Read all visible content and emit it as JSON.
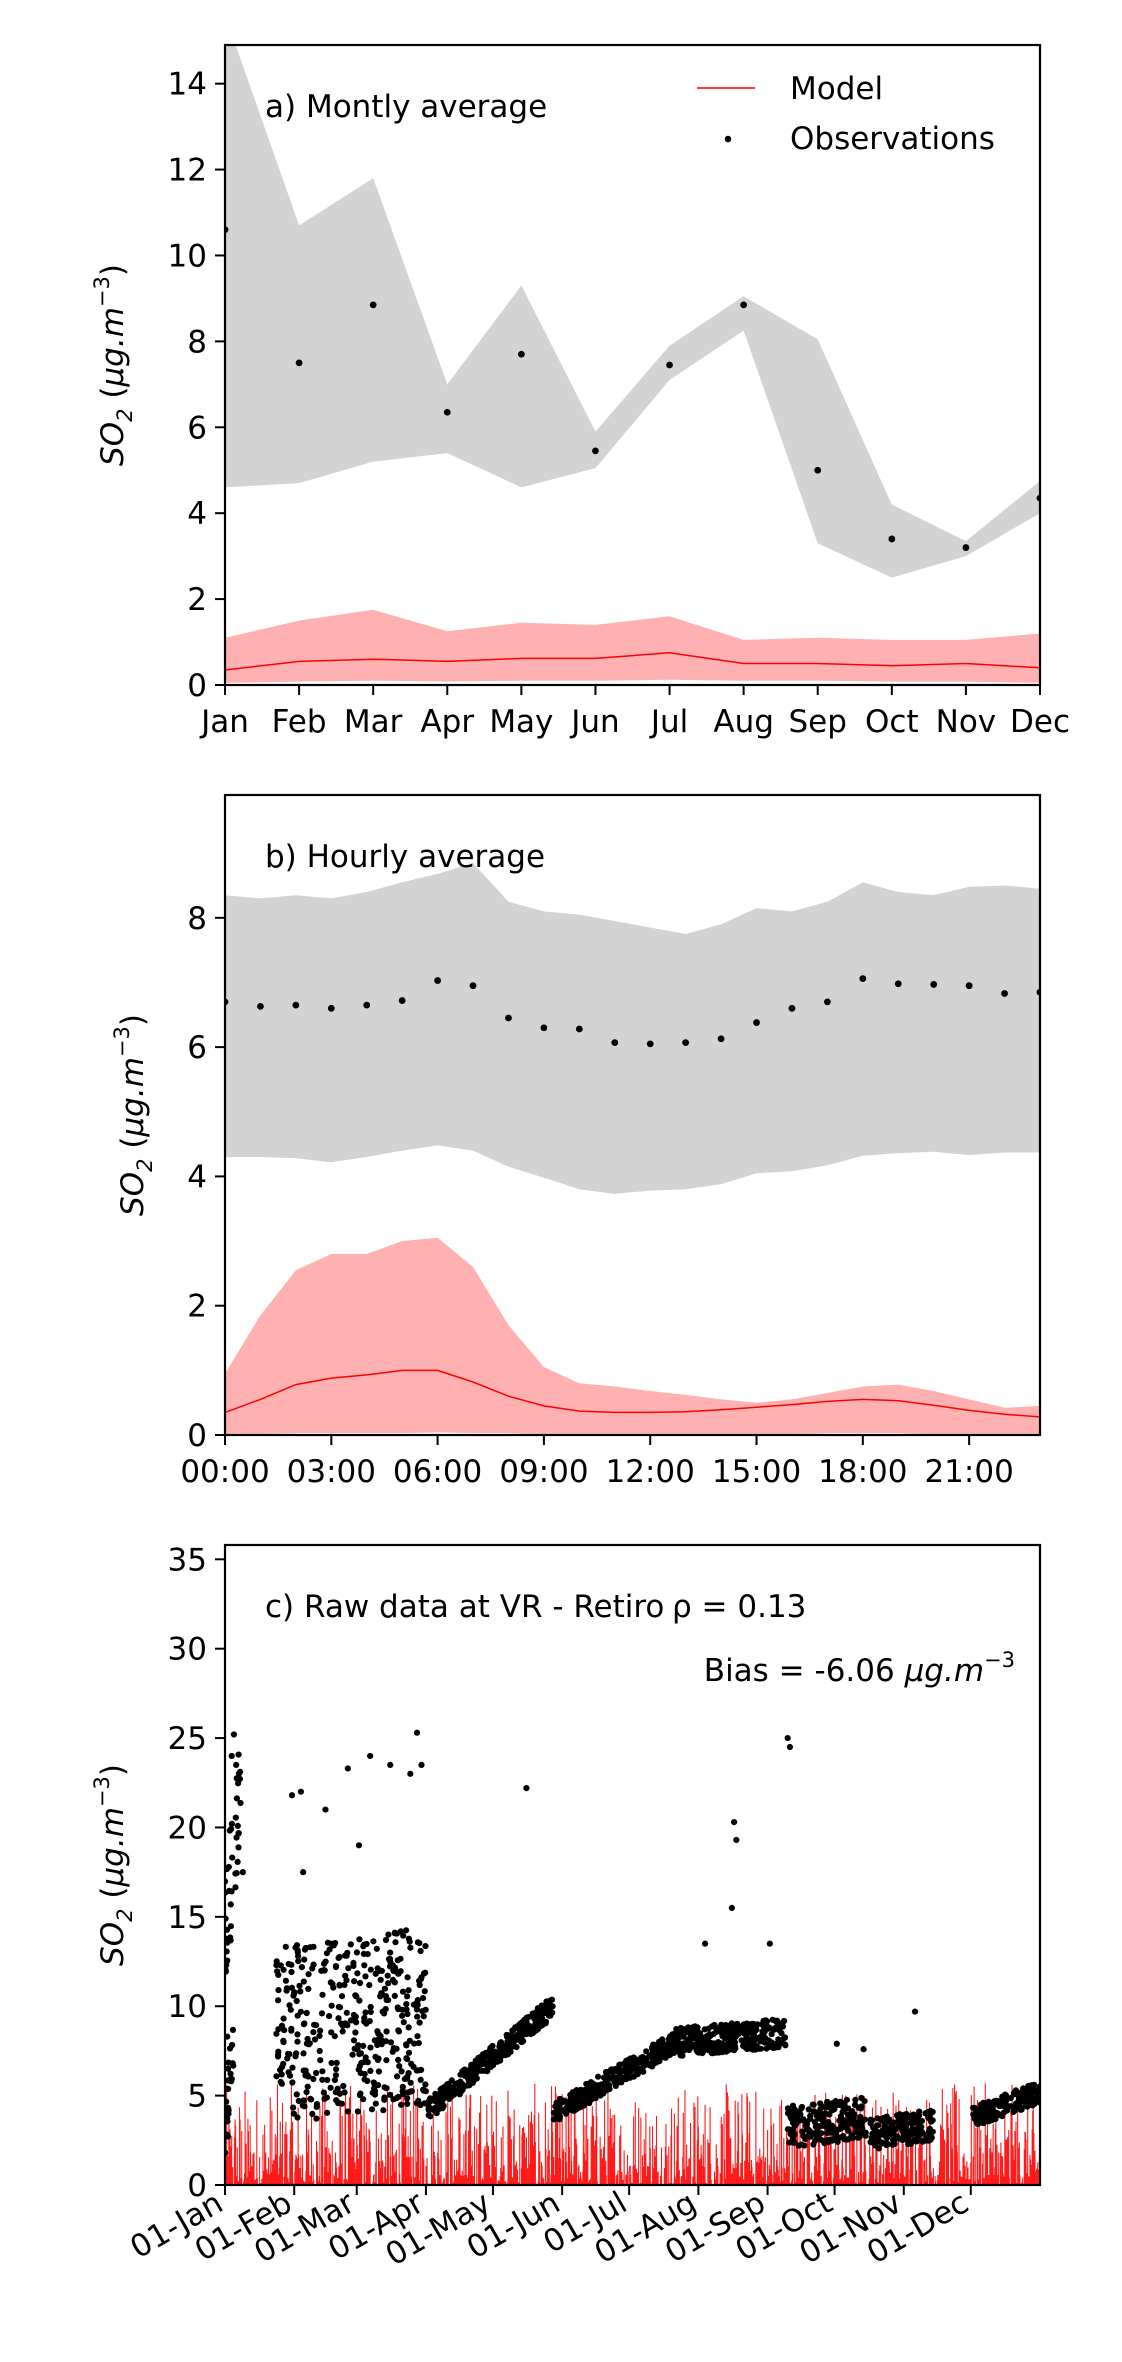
{
  "chart_data": [
    {
      "type": "line",
      "panel": "a",
      "annotation": "a) Montly average",
      "ylabel": "SO2 (µg.m−3)",
      "xlabel": "",
      "categories": [
        "Jan",
        "Feb",
        "Mar",
        "Apr",
        "May",
        "Jun",
        "Jul",
        "Aug",
        "Sep",
        "Oct",
        "Nov",
        "Dec"
      ],
      "ylim": [
        0,
        14.9
      ],
      "yticks": [
        0,
        2,
        4,
        6,
        8,
        10,
        12,
        14
      ],
      "legend": {
        "position": "top-right",
        "entries": [
          "Model",
          "Observations"
        ]
      },
      "series": [
        {
          "name": "Observations",
          "kind": "points",
          "color": "#000000",
          "values": [
            10.6,
            7.5,
            8.85,
            6.35,
            7.7,
            5.45,
            7.45,
            8.85,
            5.0,
            3.4,
            3.2,
            4.35
          ]
        },
        {
          "name": "Observations",
          "kind": "band",
          "color": "#d3d3d3",
          "lower": [
            4.6,
            4.7,
            5.2,
            5.4,
            4.6,
            5.05,
            7.1,
            8.25,
            3.3,
            2.5,
            3.0,
            4.0
          ],
          "upper": [
            15.6,
            10.7,
            11.8,
            7.0,
            9.3,
            5.9,
            7.9,
            9.05,
            8.05,
            4.2,
            3.35,
            4.75
          ]
        },
        {
          "name": "Model",
          "kind": "line",
          "color": "#ff0000",
          "values": [
            0.35,
            0.55,
            0.6,
            0.55,
            0.62,
            0.62,
            0.75,
            0.5,
            0.5,
            0.45,
            0.5,
            0.4
          ]
        },
        {
          "name": "Model",
          "kind": "band",
          "color": "#ffb0b0",
          "lower": [
            0.05,
            0.08,
            0.1,
            0.08,
            0.1,
            0.1,
            0.12,
            0.1,
            0.1,
            0.08,
            0.08,
            0.05
          ],
          "upper": [
            1.1,
            1.5,
            1.75,
            1.25,
            1.45,
            1.4,
            1.6,
            1.05,
            1.1,
            1.05,
            1.05,
            1.2
          ]
        }
      ]
    },
    {
      "type": "line",
      "panel": "b",
      "annotation": "b) Hourly average",
      "ylabel": "SO2 (µg.m−3)",
      "xlabel": "",
      "x": [
        0,
        1,
        2,
        3,
        4,
        5,
        6,
        7,
        8,
        9,
        10,
        11,
        12,
        13,
        14,
        15,
        16,
        17,
        18,
        19,
        20,
        21,
        22,
        23
      ],
      "xtick_labels": [
        "00:00",
        "03:00",
        "06:00",
        "09:00",
        "12:00",
        "15:00",
        "18:00",
        "21:00"
      ],
      "xticks": [
        0,
        3,
        6,
        9,
        12,
        15,
        18,
        21
      ],
      "xlim": [
        0,
        23
      ],
      "ylim": [
        0,
        9.9
      ],
      "yticks": [
        0,
        2,
        4,
        6,
        8
      ],
      "series": [
        {
          "name": "Observations",
          "kind": "points",
          "color": "#000000",
          "values": [
            6.7,
            6.63,
            6.65,
            6.6,
            6.65,
            6.72,
            7.03,
            6.95,
            6.45,
            6.3,
            6.28,
            6.07,
            6.05,
            6.07,
            6.13,
            6.38,
            6.6,
            6.7,
            7.06,
            6.98,
            6.97,
            6.95,
            6.83,
            6.85
          ]
        },
        {
          "name": "Observations",
          "kind": "band",
          "color": "#d3d3d3",
          "lower": [
            4.3,
            4.3,
            4.28,
            4.22,
            4.3,
            4.4,
            4.48,
            4.4,
            4.15,
            3.98,
            3.8,
            3.73,
            3.78,
            3.8,
            3.88,
            4.05,
            4.08,
            4.17,
            4.32,
            4.36,
            4.38,
            4.33,
            4.37,
            4.37
          ],
          "upper": [
            8.35,
            8.3,
            8.35,
            8.3,
            8.4,
            8.55,
            8.68,
            8.85,
            8.25,
            8.1,
            8.05,
            7.95,
            7.85,
            7.75,
            7.9,
            8.15,
            8.1,
            8.25,
            8.55,
            8.4,
            8.35,
            8.48,
            8.5,
            8.45
          ]
        },
        {
          "name": "Model",
          "kind": "line",
          "color": "#ff0000",
          "values": [
            0.35,
            0.55,
            0.78,
            0.88,
            0.93,
            1.0,
            1.0,
            0.82,
            0.6,
            0.45,
            0.37,
            0.35,
            0.35,
            0.36,
            0.39,
            0.43,
            0.47,
            0.52,
            0.55,
            0.53,
            0.46,
            0.38,
            0.32,
            0.28
          ]
        },
        {
          "name": "Model",
          "kind": "band",
          "color": "#ffb0b0",
          "lower": [
            0.02,
            0.02,
            0.03,
            0.03,
            0.03,
            0.03,
            0.04,
            0.03,
            0.03,
            0.02,
            0.02,
            0.02,
            0.02,
            0.02,
            0.02,
            0.02,
            0.02,
            0.03,
            0.03,
            0.03,
            0.02,
            0.02,
            0.02,
            0.02
          ],
          "upper": [
            0.95,
            1.85,
            2.55,
            2.8,
            2.8,
            3.0,
            3.05,
            2.6,
            1.7,
            1.05,
            0.8,
            0.75,
            0.68,
            0.62,
            0.55,
            0.5,
            0.55,
            0.65,
            0.75,
            0.78,
            0.68,
            0.55,
            0.42,
            0.45
          ]
        }
      ]
    },
    {
      "type": "scatter",
      "panel": "c",
      "annotation": "c) Raw data at VR - Retiro",
      "stat_rho": "ρ = 0.13",
      "stat_bias": "Bias = -6.06 µg.m−3",
      "ylabel": "SO2 (µg.m−3)",
      "xlabel": "",
      "x_unit": "day of year",
      "xlim": [
        1,
        366
      ],
      "xticks": [
        1,
        32,
        60,
        91,
        121,
        152,
        182,
        213,
        244,
        274,
        305,
        335
      ],
      "xtick_labels": [
        "01-Jan",
        "01-Feb",
        "01-Mar",
        "01-Apr",
        "01-May",
        "01-Jun",
        "01-Jul",
        "01-Aug",
        "01-Sep",
        "01-Oct",
        "01-Nov",
        "01-Dec"
      ],
      "ylim": [
        0,
        35.8
      ],
      "yticks": [
        0,
        5,
        10,
        15,
        20,
        25,
        30,
        35
      ],
      "series": [
        {
          "name": "Observations",
          "kind": "points",
          "color": "#000000",
          "segments": [
            {
              "x": [
                1,
                5
              ],
              "base": [
                3,
                8
              ],
              "noise": 2.0
            },
            {
              "x": [
                1,
                8
              ],
              "base": [
                14,
                22
              ],
              "noise": 3.5
            },
            {
              "x": [
                24,
                31
              ],
              "base": [
                9,
                10
              ],
              "noise": 4.0
            },
            {
              "x": [
                31,
                91
              ],
              "base": [
                8.5,
                9.5
              ],
              "noise": 5.0
            },
            {
              "x": [
                92,
                148
              ],
              "base": [
                4.2,
                10.0
              ],
              "noise": 0.6
            },
            {
              "x": [
                148,
                203
              ],
              "base": [
                4.0,
                8.0
              ],
              "noise": 0.6
            },
            {
              "x": [
                203,
                252
              ],
              "base": [
                8.0,
                8.5
              ],
              "noise": 0.8
            },
            {
              "x": [
                253,
                288
              ],
              "base": [
                3.2,
                3.8
              ],
              "noise": 1.2
            },
            {
              "x": [
                290,
                318
              ],
              "base": [
                2.8,
                3.4
              ],
              "noise": 0.9
            },
            {
              "x": [
                336,
                366
              ],
              "base": [
                3.8,
                5.2
              ],
              "noise": 0.6
            }
          ],
          "peaks": [
            [
              2,
              8.3
            ],
            [
              4,
              24.0
            ],
            [
              5,
              25.2
            ],
            [
              6,
              23.5
            ],
            [
              9,
              17.5
            ],
            [
              31,
              21.8
            ],
            [
              35,
              22.0
            ],
            [
              36,
              17.5
            ],
            [
              46,
              21.0
            ],
            [
              56,
              23.3
            ],
            [
              61,
              19.0
            ],
            [
              66,
              24.0
            ],
            [
              75,
              23.5
            ],
            [
              84,
              23.0
            ],
            [
              87,
              25.3
            ],
            [
              89,
              23.5
            ],
            [
              136,
              22.2
            ],
            [
              216,
              13.5
            ],
            [
              228,
              15.5
            ],
            [
              229,
              20.3
            ],
            [
              230,
              19.3
            ],
            [
              245,
              13.5
            ],
            [
              253,
              25.0
            ],
            [
              254,
              24.5
            ],
            [
              275,
              7.9
            ],
            [
              287,
              7.6
            ],
            [
              310,
              9.7
            ]
          ]
        },
        {
          "name": "Model",
          "kind": "line",
          "color": "#ff0000",
          "range": [
            0,
            5.7
          ]
        }
      ]
    }
  ]
}
